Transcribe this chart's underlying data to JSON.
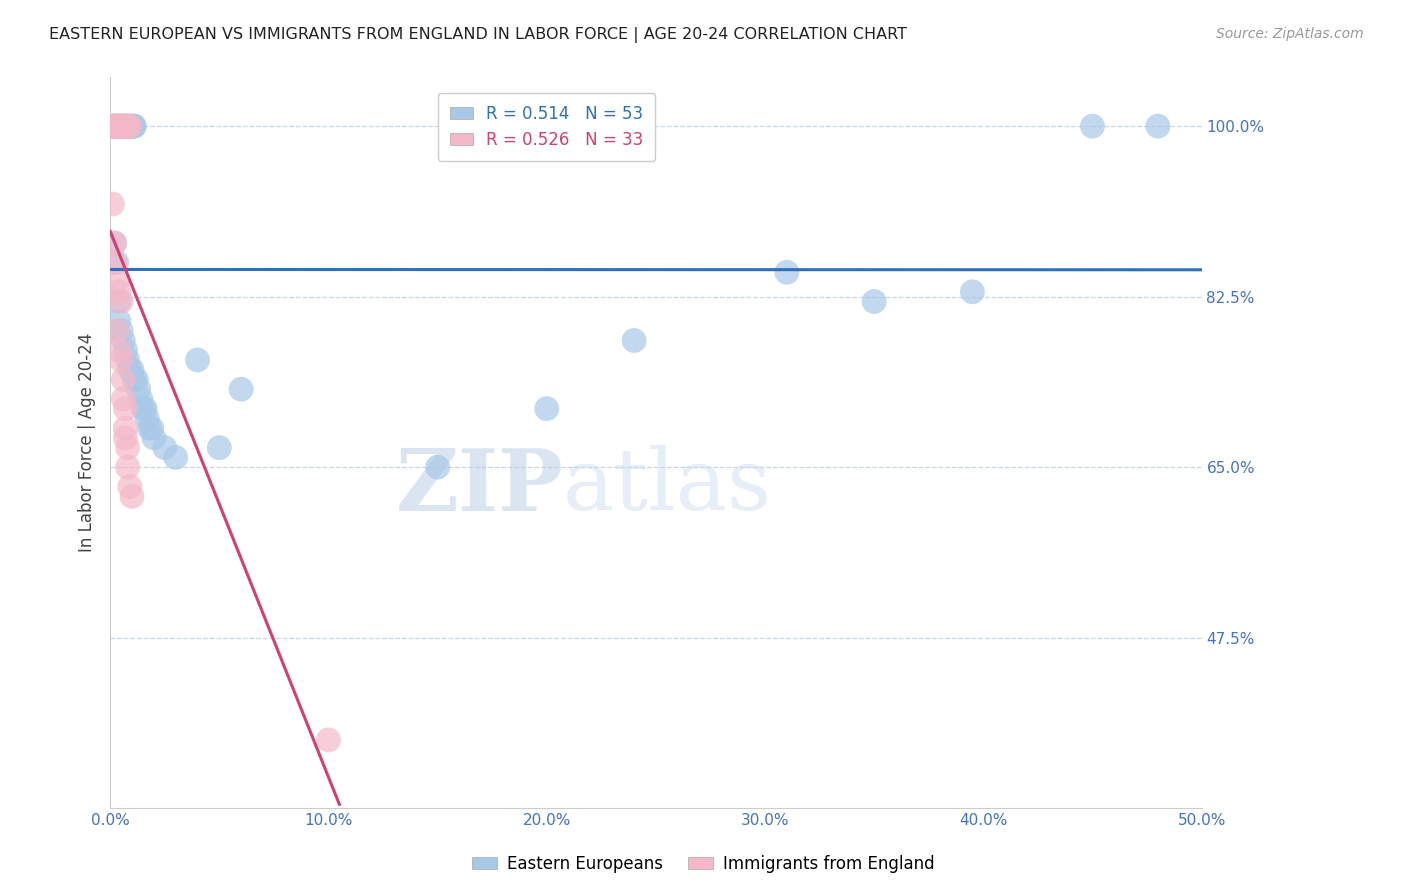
{
  "title": "EASTERN EUROPEAN VS IMMIGRANTS FROM ENGLAND IN LABOR FORCE | AGE 20-24 CORRELATION CHART",
  "source": "Source: ZipAtlas.com",
  "ylabel": "In Labor Force | Age 20-24",
  "xlim": [
    0.0,
    0.5
  ],
  "ylim": [
    0.3,
    1.05
  ],
  "yticks": [
    0.475,
    0.65,
    0.825,
    1.0
  ],
  "ytick_labels": [
    "47.5%",
    "65.0%",
    "82.5%",
    "100.0%"
  ],
  "xticks": [
    0.0,
    0.1,
    0.2,
    0.3,
    0.4,
    0.5
  ],
  "xtick_labels": [
    "0.0%",
    "10.0%",
    "20.0%",
    "30.0%",
    "40.0%",
    "50.0%"
  ],
  "blue_R": 0.514,
  "blue_N": 53,
  "pink_R": 0.526,
  "pink_N": 33,
  "blue_color": "#a8c8e8",
  "pink_color": "#f4b8c8",
  "blue_line_color": "#3070b8",
  "pink_line_color": "#d04070",
  "legend_label_blue": "Eastern Europeans",
  "legend_label_pink": "Immigrants from England",
  "watermark_zip": "ZIP",
  "watermark_atlas": "atlas",
  "background_color": "#ffffff",
  "grid_color": "#c8d4e8",
  "title_color": "#222222",
  "axis_label_color": "#444444",
  "tick_color": "#4472c4",
  "blue_scatter": [
    [
      0.001,
      1.0
    ],
    [
      0.002,
      1.0
    ],
    [
      0.002,
      1.0
    ],
    [
      0.003,
      1.0
    ],
    [
      0.003,
      1.0
    ],
    [
      0.004,
      1.0
    ],
    [
      0.004,
      1.0
    ],
    [
      0.005,
      1.0
    ],
    [
      0.005,
      1.0
    ],
    [
      0.006,
      1.0
    ],
    [
      0.006,
      1.0
    ],
    [
      0.007,
      1.0
    ],
    [
      0.007,
      1.0
    ],
    [
      0.008,
      1.0
    ],
    [
      0.008,
      1.0
    ],
    [
      0.009,
      1.0
    ],
    [
      0.01,
      1.0
    ],
    [
      0.01,
      1.0
    ],
    [
      0.011,
      1.0
    ],
    [
      0.011,
      1.0
    ],
    [
      0.002,
      0.88
    ],
    [
      0.003,
      0.86
    ],
    [
      0.004,
      0.82
    ],
    [
      0.004,
      0.8
    ],
    [
      0.005,
      0.79
    ],
    [
      0.006,
      0.78
    ],
    [
      0.007,
      0.77
    ],
    [
      0.008,
      0.76
    ],
    [
      0.009,
      0.75
    ],
    [
      0.01,
      0.75
    ],
    [
      0.011,
      0.74
    ],
    [
      0.012,
      0.74
    ],
    [
      0.013,
      0.73
    ],
    [
      0.014,
      0.72
    ],
    [
      0.015,
      0.71
    ],
    [
      0.016,
      0.71
    ],
    [
      0.017,
      0.7
    ],
    [
      0.018,
      0.69
    ],
    [
      0.019,
      0.69
    ],
    [
      0.02,
      0.68
    ],
    [
      0.025,
      0.67
    ],
    [
      0.03,
      0.66
    ],
    [
      0.04,
      0.76
    ],
    [
      0.05,
      0.67
    ],
    [
      0.06,
      0.73
    ],
    [
      0.15,
      0.65
    ],
    [
      0.2,
      0.71
    ],
    [
      0.24,
      0.78
    ],
    [
      0.31,
      0.85
    ],
    [
      0.35,
      0.82
    ],
    [
      0.395,
      0.83
    ],
    [
      0.45,
      1.0
    ],
    [
      0.48,
      1.0
    ]
  ],
  "pink_scatter": [
    [
      0.001,
      1.0
    ],
    [
      0.002,
      1.0
    ],
    [
      0.002,
      1.0
    ],
    [
      0.003,
      1.0
    ],
    [
      0.003,
      1.0
    ],
    [
      0.004,
      1.0
    ],
    [
      0.005,
      1.0
    ],
    [
      0.005,
      1.0
    ],
    [
      0.006,
      1.0
    ],
    [
      0.006,
      1.0
    ],
    [
      0.007,
      1.0
    ],
    [
      0.008,
      1.0
    ],
    [
      0.008,
      1.0
    ],
    [
      0.009,
      1.0
    ],
    [
      0.001,
      0.92
    ],
    [
      0.002,
      0.88
    ],
    [
      0.002,
      0.86
    ],
    [
      0.003,
      0.84
    ],
    [
      0.004,
      0.83
    ],
    [
      0.005,
      0.82
    ],
    [
      0.003,
      0.79
    ],
    [
      0.004,
      0.77
    ],
    [
      0.005,
      0.76
    ],
    [
      0.006,
      0.74
    ],
    [
      0.006,
      0.72
    ],
    [
      0.007,
      0.71
    ],
    [
      0.007,
      0.69
    ],
    [
      0.007,
      0.68
    ],
    [
      0.008,
      0.67
    ],
    [
      0.008,
      0.65
    ],
    [
      0.009,
      0.63
    ],
    [
      0.01,
      0.62
    ],
    [
      0.1,
      0.37
    ]
  ]
}
